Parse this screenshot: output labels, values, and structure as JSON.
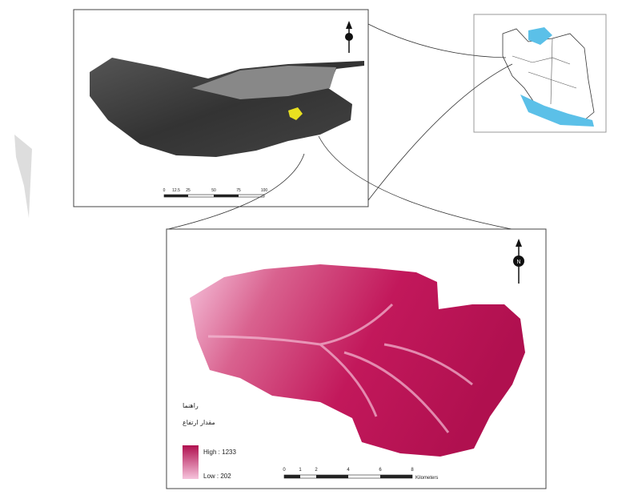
{
  "legend": {
    "title": "راهنما",
    "subtitle": "مقدار ارتفاع",
    "high": "High : 1233",
    "low": "Low : 202"
  },
  "scale_bar": {
    "labels": [
      "0",
      "1",
      "2",
      "4",
      "6",
      "8"
    ],
    "unit": "Kilometers"
  },
  "inset_scale": {
    "labels": [
      "0",
      "12.5",
      "25",
      "50",
      "75",
      "100"
    ]
  },
  "north": "N"
}
